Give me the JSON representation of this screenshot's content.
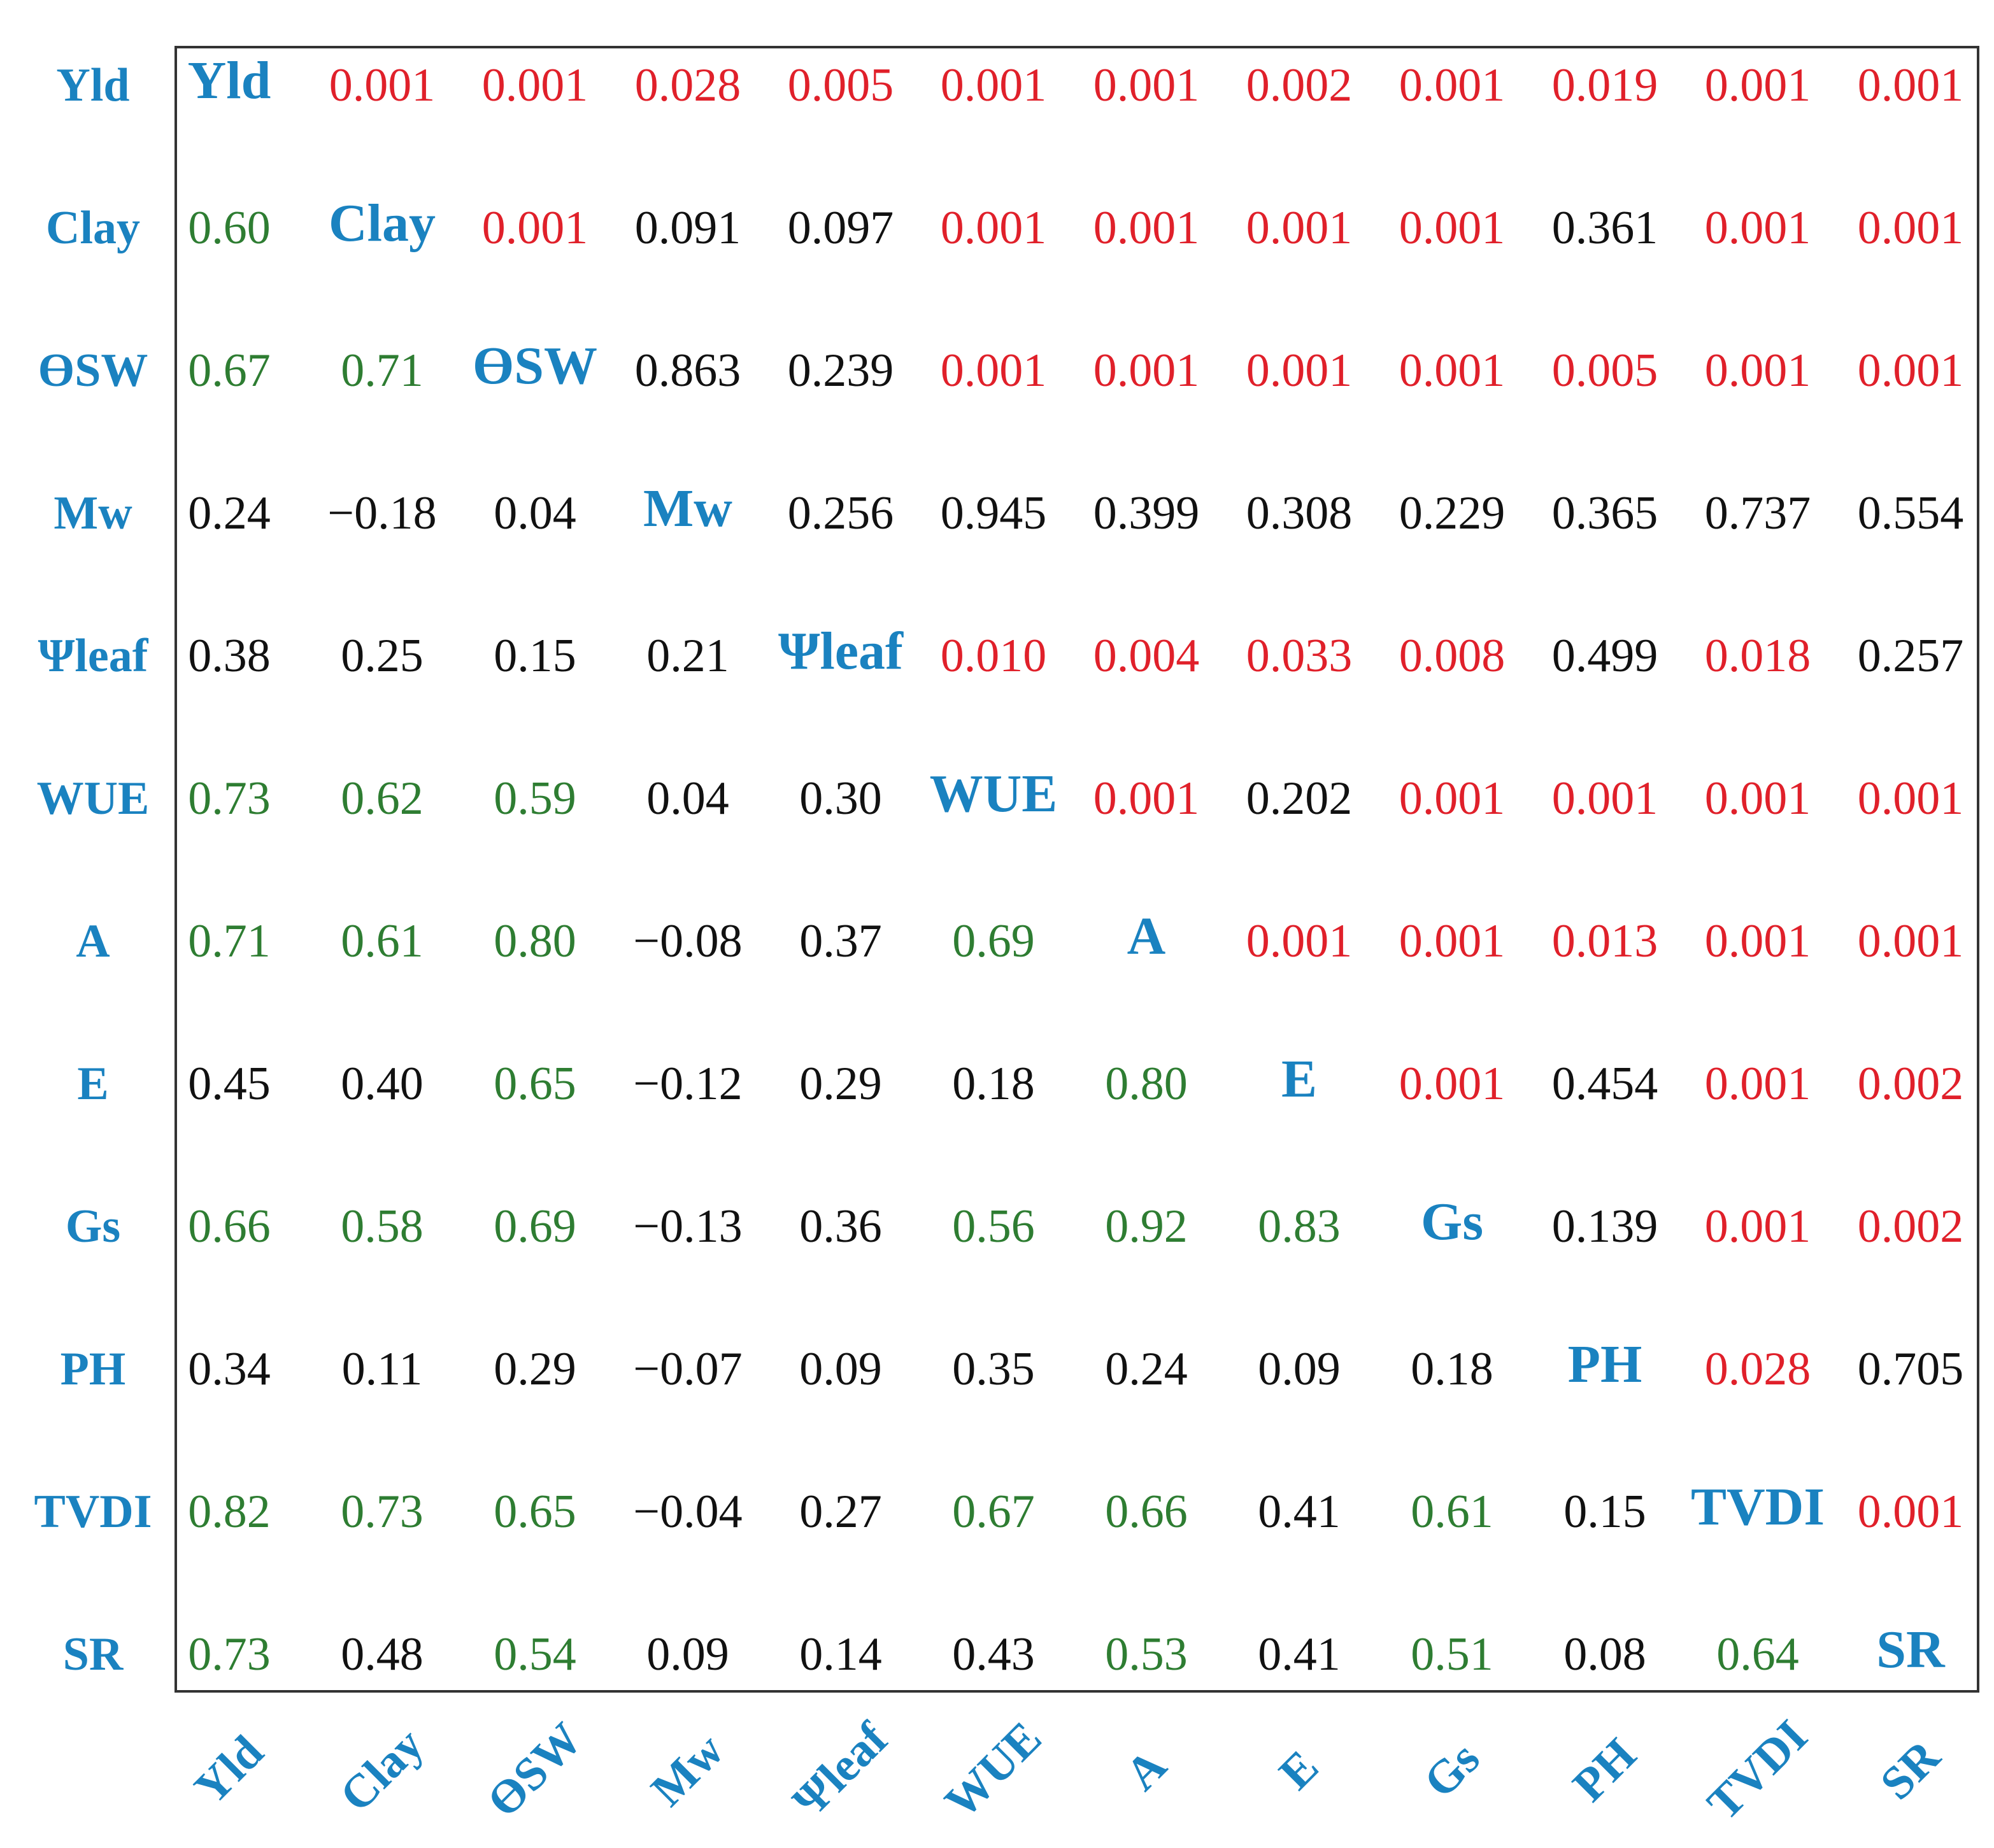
{
  "chart_data": {
    "type": "table",
    "variables": [
      "Yld",
      "Clay",
      "ϴSW",
      "Mw",
      "Ψleaf",
      "WUE",
      "A",
      "E",
      "Gs",
      "PH",
      "TVDI",
      "SR"
    ],
    "matrix": [
      [
        "Yld",
        "0.001",
        "0.001",
        "0.028",
        "0.005",
        "0.001",
        "0.001",
        "0.002",
        "0.001",
        "0.019",
        "0.001",
        "0.001"
      ],
      [
        "0.60",
        "Clay",
        "0.001",
        "0.091",
        "0.097",
        "0.001",
        "0.001",
        "0.001",
        "0.001",
        "0.361",
        "0.001",
        "0.001"
      ],
      [
        "0.67",
        "0.71",
        "ϴSW",
        "0.863",
        "0.239",
        "0.001",
        "0.001",
        "0.001",
        "0.001",
        "0.005",
        "0.001",
        "0.001"
      ],
      [
        "0.24",
        "−0.18",
        "0.04",
        "Mw",
        "0.256",
        "0.945",
        "0.399",
        "0.308",
        "0.229",
        "0.365",
        "0.737",
        "0.554"
      ],
      [
        "0.38",
        "0.25",
        "0.15",
        "0.21",
        "Ψleaf",
        "0.010",
        "0.004",
        "0.033",
        "0.008",
        "0.499",
        "0.018",
        "0.257"
      ],
      [
        "0.73",
        "0.62",
        "0.59",
        "0.04",
        "0.30",
        "WUE",
        "0.001",
        "0.202",
        "0.001",
        "0.001",
        "0.001",
        "0.001"
      ],
      [
        "0.71",
        "0.61",
        "0.80",
        "−0.08",
        "0.37",
        "0.69",
        "A",
        "0.001",
        "0.001",
        "0.013",
        "0.001",
        "0.001"
      ],
      [
        "0.45",
        "0.40",
        "0.65",
        "−0.12",
        "0.29",
        "0.18",
        "0.80",
        "E",
        "0.001",
        "0.454",
        "0.001",
        "0.002"
      ],
      [
        "0.66",
        "0.58",
        "0.69",
        "−0.13",
        "0.36",
        "0.56",
        "0.92",
        "0.83",
        "Gs",
        "0.139",
        "0.001",
        "0.002"
      ],
      [
        "0.34",
        "0.11",
        "0.29",
        "−0.07",
        "0.09",
        "0.35",
        "0.24",
        "0.09",
        "0.18",
        "PH",
        "0.028",
        "0.705"
      ],
      [
        "0.82",
        "0.73",
        "0.65",
        "−0.04",
        "0.27",
        "0.67",
        "0.66",
        "0.41",
        "0.61",
        "0.15",
        "TVDI",
        "0.001"
      ],
      [
        "0.73",
        "0.48",
        "0.54",
        "0.09",
        "0.14",
        "0.43",
        "0.53",
        "0.41",
        "0.51",
        "0.08",
        "0.64",
        "SR"
      ]
    ],
    "colors": {
      "label": "#1a82c0",
      "significant_r": "#2e7d32",
      "significant_p": "#e0202a",
      "default": "#111111"
    },
    "cell_colors": [
      "DRRRRRRRRRRR",
      "GDRKKRRRRKRR",
      "GGDKKRRRRRRR",
      "KKKDKKKKKKKK",
      "KKKKDRRRRKRK",
      "GGGKKDRKRRRR",
      "GGGKKGDRRRRR",
      "KKGKKKGDRKRR",
      "GGGKKGGGDKRR",
      "KKKKKKKKKDRK",
      "GGGKKGGKGKDR",
      "GKGKKKGKGKGD"
    ]
  }
}
